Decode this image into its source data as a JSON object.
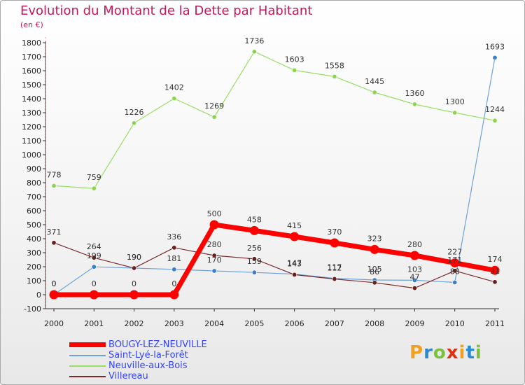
{
  "header": {
    "title": "Evolution du Montant de la Dette par Habitant",
    "unit": "(en €)"
  },
  "logo": {
    "text": "Proxiti",
    "letter_colors": [
      "#f0a020",
      "#2a8ad0",
      "#7cc040",
      "#e03010",
      "#f0a020",
      "#2a8ad0",
      "#7cc040"
    ]
  },
  "chart_data": {
    "type": "line",
    "title": "Evolution du Montant de la Dette par Habitant",
    "ylabel": "(en €)",
    "xlabel": "",
    "x": [
      "2000",
      "2001",
      "2002",
      "2003",
      "2004",
      "2005",
      "2006",
      "2007",
      "2008",
      "2009",
      "2010",
      "2011"
    ],
    "ylim": [
      -100,
      1800
    ],
    "yticks": [
      -100,
      0,
      100,
      200,
      300,
      400,
      500,
      600,
      700,
      800,
      900,
      1000,
      1100,
      1200,
      1300,
      1400,
      1500,
      1600,
      1700,
      1800
    ],
    "grid": false,
    "legend_position": "bottom",
    "series": [
      {
        "name": "BOUGY-LEZ-NEUVILLE",
        "color": "#ff0000",
        "width": 7,
        "values": [
          0,
          0,
          0,
          0,
          500,
          458,
          415,
          370,
          323,
          280,
          227,
          174
        ]
      },
      {
        "name": "Saint-Lyé-la-Forêt",
        "color": "#6fa3d8",
        "width": 1.2,
        "values": [
          0,
          199,
          190,
          181,
          170,
          159,
          147,
          117,
          105,
          103,
          88,
          1693
        ]
      },
      {
        "name": "Neuville-aux-Bois",
        "color": "#99dd66",
        "width": 1.2,
        "values": [
          778,
          759,
          1226,
          1402,
          1269,
          1736,
          1603,
          1558,
          1445,
          1360,
          1300,
          1244
        ]
      },
      {
        "name": "Villereau",
        "color": "#7a2a2a",
        "width": 1.2,
        "values": [
          371,
          264,
          190,
          336,
          280,
          256,
          143,
          112,
          86,
          47,
          171,
          91
        ]
      }
    ]
  }
}
